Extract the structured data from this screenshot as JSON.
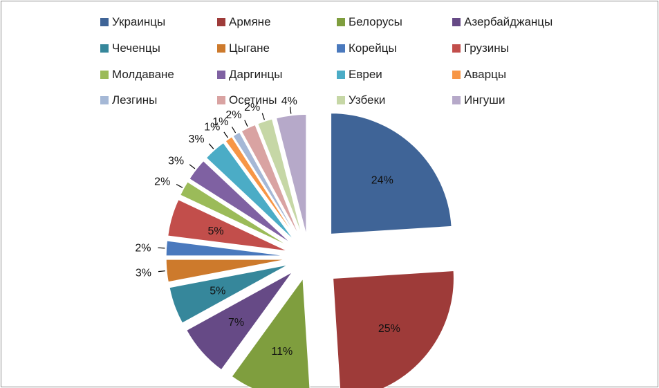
{
  "chart_data": {
    "type": "pie",
    "title": "",
    "legend_placement": "top",
    "series": [
      {
        "name": "Украинцы",
        "value": 24,
        "label": "24%",
        "color": "#3f6497"
      },
      {
        "name": "Армяне",
        "value": 25,
        "label": "25%",
        "color": "#9e3b39"
      },
      {
        "name": "Белорусы",
        "value": 11,
        "label": "11%",
        "color": "#7f9e3e"
      },
      {
        "name": "Азербайджанцы",
        "value": 7,
        "label": "7%",
        "color": "#664a86"
      },
      {
        "name": "Чеченцы",
        "value": 5,
        "label": "5%",
        "color": "#36879b"
      },
      {
        "name": "Цыгане",
        "value": 3,
        "label": "3%",
        "color": "#cd7a2c"
      },
      {
        "name": "Корейцы",
        "value": 2,
        "label": "2%",
        "color": "#4a79bd"
      },
      {
        "name": "Грузины",
        "value": 5,
        "label": "5%",
        "color": "#c24e4b"
      },
      {
        "name": "Молдаване",
        "value": 2,
        "label": "2%",
        "color": "#9bbb59"
      },
      {
        "name": "Даргинцы",
        "value": 3,
        "label": "3%",
        "color": "#7f61a2"
      },
      {
        "name": "Евреи",
        "value": 3,
        "label": "3%",
        "color": "#4bacc6"
      },
      {
        "name": "Аварцы",
        "value": 1,
        "label": "1%",
        "color": "#f79646"
      },
      {
        "name": "Лезгины",
        "value": 1,
        "label": "1%",
        "color": "#a5b8d6"
      },
      {
        "name": "Осетины",
        "value": 2,
        "label": "2%",
        "color": "#d9a3a2"
      },
      {
        "name": "Узбеки",
        "value": 2,
        "label": "2%",
        "color": "#c6d7a6"
      },
      {
        "name": "Ингуши",
        "value": 4,
        "label": "4%",
        "color": "#b6a9c9"
      }
    ]
  }
}
